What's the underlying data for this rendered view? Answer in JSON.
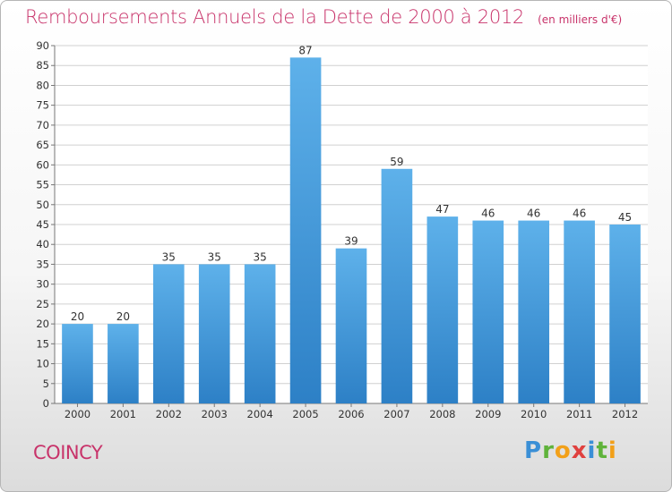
{
  "header": {
    "title": "Remboursements Annuels de la Dette de 2000 à 2012",
    "units": "(en milliers d'€)"
  },
  "footer": {
    "commune": "COINCY",
    "logo_letters": [
      "P",
      "r",
      "o",
      "x",
      "i",
      "t",
      "i"
    ]
  },
  "colors": {
    "title": "#c8336a",
    "bar_light": "#5eb1ea",
    "bar_dark": "#2d80c6",
    "grid": "#d0d0d0"
  },
  "chart_data": {
    "type": "bar",
    "title": "Remboursements Annuels de la Dette de 2000 à 2012",
    "categories": [
      "2000",
      "2001",
      "2002",
      "2003",
      "2004",
      "2005",
      "2006",
      "2007",
      "2008",
      "2009",
      "2010",
      "2011",
      "2012"
    ],
    "values": [
      20,
      20,
      35,
      35,
      35,
      87,
      39,
      59,
      47,
      46,
      46,
      46,
      45
    ],
    "data_labels": [
      "20",
      "20",
      "35",
      "35",
      "35",
      "87",
      "39",
      "59",
      "47",
      "46",
      "46",
      "46",
      "45"
    ],
    "ylim": [
      0,
      90
    ],
    "yticks": [
      0,
      5,
      10,
      15,
      20,
      25,
      30,
      35,
      40,
      45,
      50,
      55,
      60,
      65,
      70,
      75,
      80,
      85,
      90
    ],
    "xlabel": "",
    "ylabel": "",
    "grid": true
  }
}
